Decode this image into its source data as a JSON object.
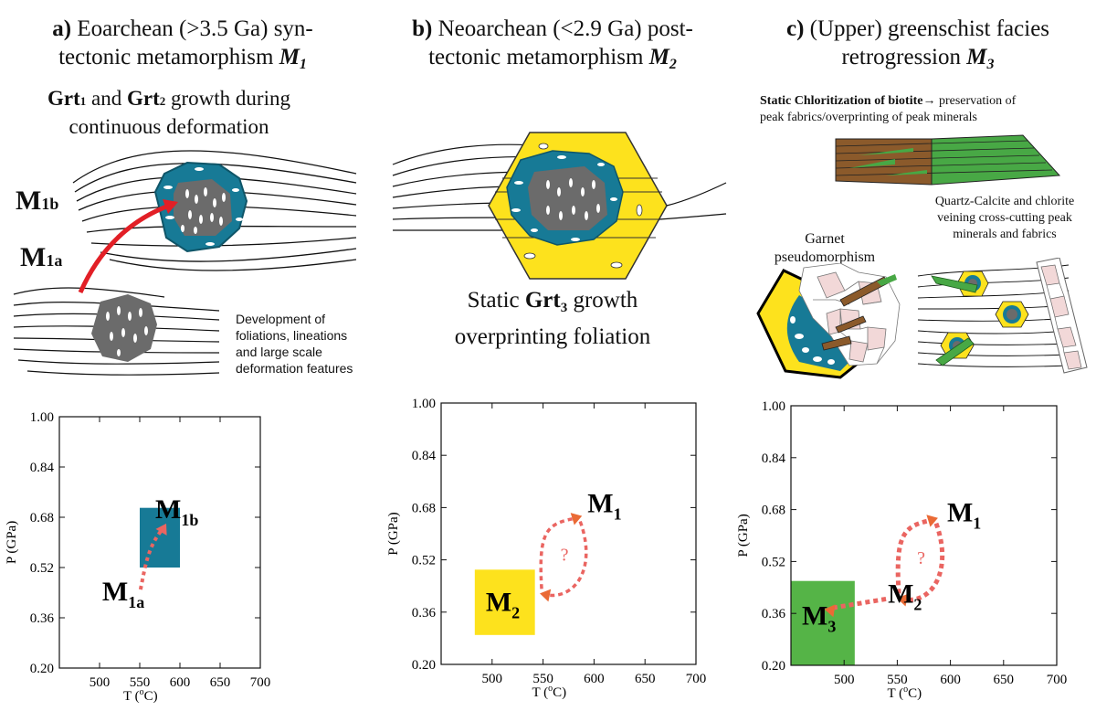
{
  "panel_a": {
    "letter": "a)",
    "title_l1": "Eoarchean (>3.5 Ga) syn-",
    "title_l2": "tectonic metamorphism",
    "title_m": "M",
    "title_sub": "1",
    "subtitle_l1_b1": "Grt",
    "subtitle_l1_s1": "1",
    "subtitle_l1_and": " and ",
    "subtitle_l1_b2": "Grt",
    "subtitle_l1_s2": "2",
    "subtitle_l1_rest": " growth during",
    "subtitle_l2": "continuous deformation",
    "label_m1b": "M",
    "label_m1b_sub": "1b",
    "label_m1a": "M",
    "label_m1a_sub": "1a",
    "note_l1": "Development of",
    "note_l2": "foliations, lineations",
    "note_l3": "and large scale",
    "note_l4": "deformation features"
  },
  "panel_b": {
    "letter": "b)",
    "title_l1": "Neoarchean (<2.9 Ga) post-",
    "title_l2": "tectonic metamorphism",
    "title_m": "M",
    "title_sub": "2",
    "caption_l1_pre": "Static ",
    "caption_l1_b": "Grt",
    "caption_l1_sub": "3",
    "caption_l1_post": " growth",
    "caption_l2": "overprinting foliation"
  },
  "panel_c": {
    "letter": "c)",
    "title_l1": "(Upper) greenschist facies",
    "title_l2": "retrogression",
    "title_m": "M",
    "title_sub": "3",
    "chlor_b": "Static Chloritization of biotite",
    "chlor_arrow": "→",
    "chlor_rest": " preservation of",
    "chlor_l2": "peak fabrics/overprinting of peak minerals",
    "garnet_l1": "Garnet",
    "garnet_l2": "pseudomorphism",
    "vein_l1": "Quartz-Calcite and chlorite",
    "vein_l2": "veining cross-cutting peak",
    "vein_l3": "minerals and fabrics"
  },
  "chart_data": [
    {
      "type": "scatter",
      "xlabel": "T (oC)",
      "ylabel": "P (GPa)",
      "xlim": [
        450,
        700
      ],
      "ylim": [
        0.2,
        1.0
      ],
      "x_ticks": [
        500,
        550,
        600,
        650,
        700
      ],
      "y_ticks": [
        0.2,
        0.36,
        0.52,
        0.68,
        0.84,
        1.0
      ],
      "regions": [
        {
          "x": [
            550,
            600
          ],
          "y": [
            0.52,
            0.71
          ],
          "color": "#177a96"
        }
      ],
      "points": [
        {
          "label": "M",
          "sub": "1a",
          "x": 551,
          "y": 0.45
        },
        {
          "label": "M",
          "sub": "1b",
          "x": 583,
          "y": 0.66
        }
      ],
      "paths": [
        {
          "from": [
            551,
            0.45
          ],
          "to": [
            583,
            0.66
          ]
        }
      ]
    },
    {
      "type": "scatter",
      "xlabel": "T (oC)",
      "ylabel": "P (GPa)",
      "xlim": [
        450,
        700
      ],
      "ylim": [
        0.2,
        1.0
      ],
      "x_ticks": [
        500,
        550,
        600,
        650,
        700
      ],
      "y_ticks": [
        0.2,
        0.36,
        0.52,
        0.68,
        0.84,
        1.0
      ],
      "regions": [
        {
          "x": [
            483,
            542
          ],
          "y": [
            0.29,
            0.49
          ],
          "color": "#fde21d"
        }
      ],
      "points": [
        {
          "label": "M",
          "sub": "1",
          "x": 590,
          "y": 0.66
        },
        {
          "label": "M",
          "sub": "2",
          "x": 545,
          "y": 0.42
        }
      ],
      "question": "?"
    },
    {
      "type": "scatter",
      "xlabel": "T (oC)",
      "ylabel": "P (GPa)",
      "xlim": [
        450,
        700
      ],
      "ylim": [
        0.2,
        1.0
      ],
      "x_ticks": [
        500,
        550,
        600,
        650,
        700
      ],
      "y_ticks": [
        0.2,
        0.36,
        0.52,
        0.68,
        0.84,
        1.0
      ],
      "regions": [
        {
          "x": [
            450,
            510
          ],
          "y": [
            0.2,
            0.46
          ],
          "color": "#55b447"
        }
      ],
      "points": [
        {
          "label": "M",
          "sub": "1",
          "x": 590,
          "y": 0.66
        },
        {
          "label": "M",
          "sub": "2",
          "x": 548,
          "y": 0.41
        },
        {
          "label": "M",
          "sub": "3",
          "x": 478,
          "y": 0.37
        }
      ],
      "question": "?"
    }
  ]
}
